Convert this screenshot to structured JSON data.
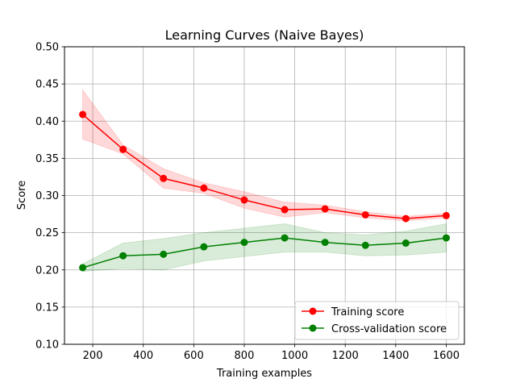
{
  "chart_data": {
    "type": "line",
    "title": "Learning Curves (Naive Bayes)",
    "xlabel": "Training examples",
    "ylabel": "Score",
    "xlim": [
      88,
      1672
    ],
    "ylim": [
      0.1,
      0.5
    ],
    "xticks": [
      200,
      400,
      600,
      800,
      1000,
      1200,
      1400,
      1600
    ],
    "yticks": [
      0.1,
      0.15,
      0.2,
      0.25,
      0.3,
      0.35,
      0.4,
      0.45,
      0.5
    ],
    "grid": true,
    "legend_position": "lower-right",
    "x": [
      160,
      320,
      480,
      640,
      800,
      960,
      1120,
      1280,
      1440,
      1600
    ],
    "series": [
      {
        "name": "Training score",
        "color": "#ff0000",
        "fill_color": "#ff0000",
        "values": [
          0.409,
          0.362,
          0.323,
          0.31,
          0.294,
          0.281,
          0.282,
          0.274,
          0.269,
          0.273
        ],
        "upper": [
          0.442,
          0.368,
          0.336,
          0.317,
          0.305,
          0.291,
          0.287,
          0.278,
          0.272,
          0.276
        ],
        "lower": [
          0.376,
          0.356,
          0.31,
          0.303,
          0.283,
          0.271,
          0.277,
          0.27,
          0.266,
          0.27
        ]
      },
      {
        "name": "Cross-validation score",
        "color": "#008000",
        "fill_color": "#008000",
        "values": [
          0.203,
          0.219,
          0.221,
          0.231,
          0.237,
          0.243,
          0.237,
          0.233,
          0.236,
          0.243
        ],
        "upper": [
          0.208,
          0.236,
          0.242,
          0.25,
          0.256,
          0.262,
          0.25,
          0.247,
          0.252,
          0.262
        ],
        "lower": [
          0.198,
          0.202,
          0.2,
          0.212,
          0.218,
          0.224,
          0.224,
          0.219,
          0.22,
          0.224
        ]
      }
    ]
  }
}
